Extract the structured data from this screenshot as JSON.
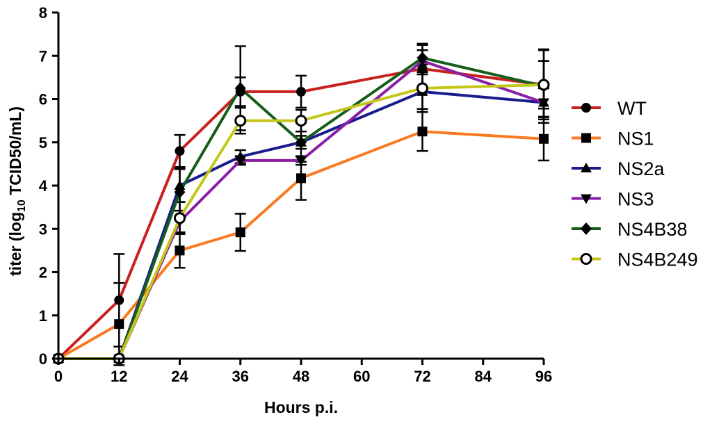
{
  "chart_data": {
    "type": "line",
    "title": "",
    "xlabel": "Hours p.i.",
    "ylabel_main": "titer (log",
    "ylabel_sub": "10",
    "ylabel_rest": " TCID50/mL)",
    "xlim": [
      0,
      96
    ],
    "ylim": [
      0,
      8
    ],
    "xticks": [
      "0",
      "12",
      "24",
      "36",
      "48",
      "60",
      "72",
      "84",
      "96"
    ],
    "yticks": [
      "0",
      "1",
      "2",
      "3",
      "4",
      "5",
      "6",
      "7",
      "8"
    ],
    "grid": false,
    "legend_position": "right",
    "x": [
      0,
      12,
      24,
      36,
      48,
      72,
      96
    ],
    "series": [
      {
        "name": "WT",
        "color": "#c8201e",
        "marker": "circle",
        "values": [
          0,
          1.35,
          4.8,
          6.17,
          6.17,
          6.7,
          6.33
        ],
        "errors": [
          0,
          1.07,
          0.37,
          0.33,
          0.37,
          0.55,
          0.8
        ]
      },
      {
        "name": "NS1",
        "color": "#f97a20",
        "marker": "square",
        "values": [
          0,
          0.8,
          2.5,
          2.92,
          4.17,
          5.25,
          5.08
        ],
        "errors": [
          0,
          0.95,
          0.4,
          0.43,
          0.5,
          0.45,
          0.5
        ]
      },
      {
        "name": "NS2a",
        "color": "#1a1b8c",
        "marker": "triangle-up",
        "values": [
          0,
          0,
          4.0,
          4.67,
          5.0,
          6.17,
          5.92
        ],
        "errors": [
          0,
          0,
          0.38,
          0.15,
          0.15,
          0.4,
          0.33
        ]
      },
      {
        "name": "NS3",
        "color": "#8a1fa6",
        "marker": "triangle-down",
        "values": [
          0,
          0,
          3.17,
          4.58,
          4.58,
          6.88,
          5.92
        ],
        "errors": [
          0,
          0,
          0.25,
          0.1,
          0.1,
          0.25,
          0.33
        ]
      },
      {
        "name": "NS4B38",
        "color": "#145e1a",
        "marker": "diamond",
        "values": [
          0,
          0,
          3.85,
          6.25,
          5.0,
          6.95,
          6.3
        ],
        "errors": [
          0,
          0,
          0.55,
          0.97,
          0.45,
          0.33,
          0.85
        ]
      },
      {
        "name": "NS4B249",
        "color": "#c5c61a",
        "marker": "open-circle",
        "values": [
          0,
          0,
          3.25,
          5.5,
          5.5,
          6.25,
          6.33
        ],
        "errors": [
          0,
          0,
          0.37,
          0.3,
          0.25,
          0.55,
          0.55
        ]
      }
    ]
  }
}
